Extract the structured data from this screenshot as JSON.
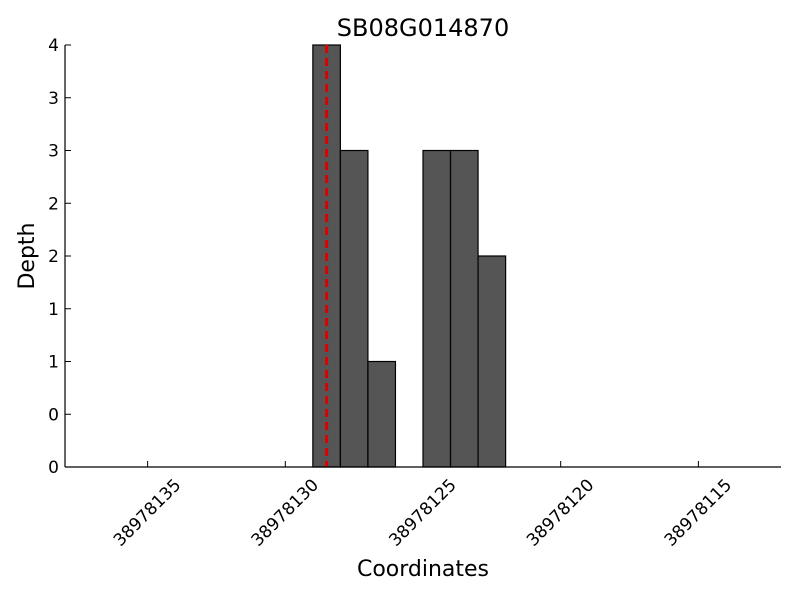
{
  "chart_data": {
    "type": "histogram",
    "title": "SB08G014870",
    "x_label": "Coordinates",
    "y_label": "Depth",
    "bins": [
      38978129,
      38978128,
      38978127,
      38978126,
      38978125,
      38978124,
      38978123,
      38978122
    ],
    "values": [
      4,
      3,
      1,
      0,
      3,
      3,
      2
    ],
    "color": "#555555",
    "xlim": [
      38978138,
      38978112
    ],
    "xticks": [
      38978135,
      38978130,
      38978125,
      38978120,
      38978115
    ],
    "ylim": [
      0,
      4
    ],
    "yticks": [
      0,
      {
        "value": 0.5,
        "label": "0"
      },
      1,
      {
        "value": 1.5,
        "label": "1"
      },
      2,
      {
        "value": 2.5,
        "label": "2"
      },
      3,
      {
        "value": 3.5,
        "label": "3"
      },
      4
    ],
    "marker_line": {
      "x": 38978128.5,
      "color": "#dd0000"
    }
  }
}
